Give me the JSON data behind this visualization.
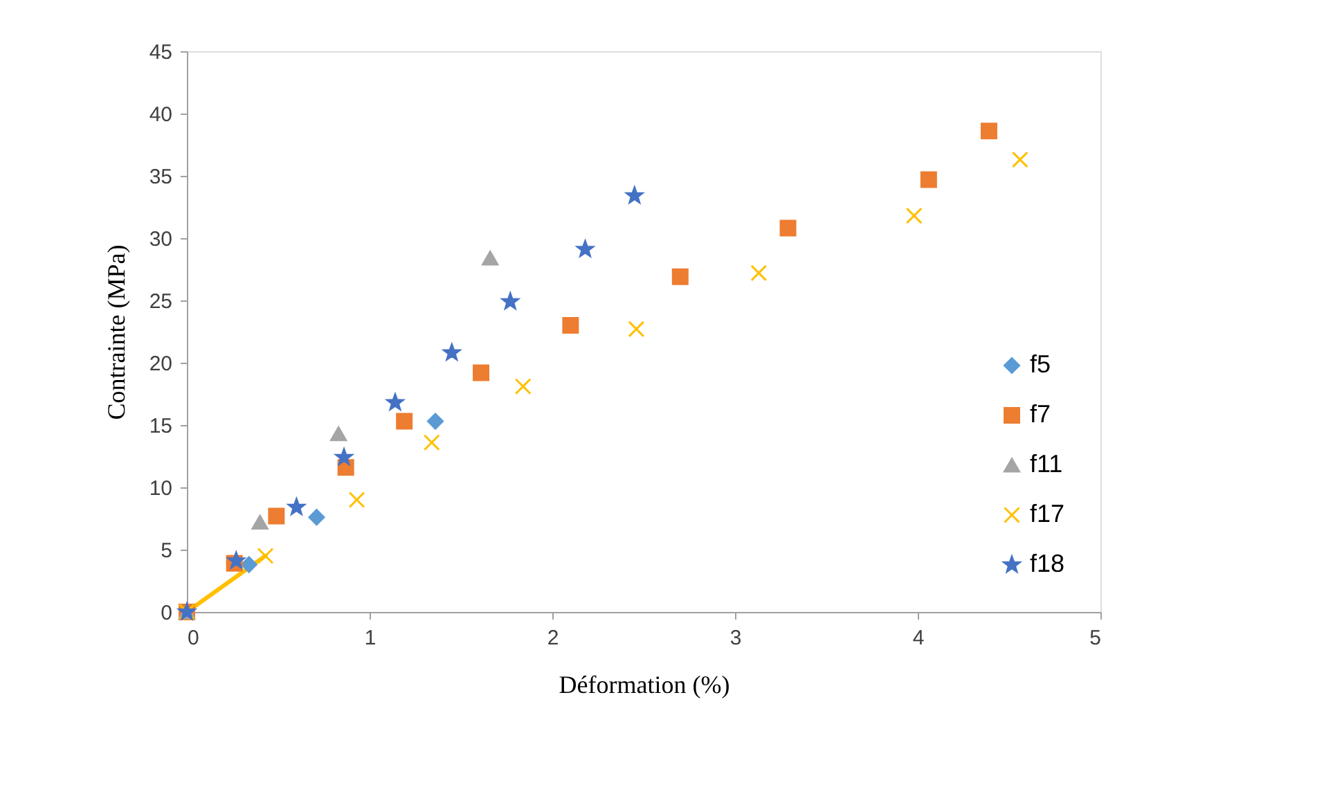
{
  "chart_data": {
    "type": "scatter",
    "xlabel": "Déformation (%)",
    "ylabel": "Contrainte (MPa)",
    "xlim": [
      0,
      5
    ],
    "xticks": [
      0,
      1,
      2,
      3,
      4,
      5
    ],
    "ylim": [
      0,
      45
    ],
    "yticks": [
      0,
      5,
      10,
      15,
      20,
      25,
      30,
      35,
      40,
      45
    ],
    "grid": false,
    "legend": "right",
    "series": [
      {
        "name": "f5",
        "color": "#5b9bd5",
        "marker": "diamond",
        "x": [
          0.34,
          0.71,
          1.36
        ],
        "values": [
          3.8,
          7.6,
          15.3
        ]
      },
      {
        "name": "f7",
        "color": "#ed7d31",
        "marker": "square",
        "x": [
          0,
          0.26,
          0.49,
          0.87,
          1.19,
          1.61,
          2.1,
          2.7,
          3.29,
          4.06,
          4.39
        ],
        "values": [
          0,
          3.9,
          7.7,
          11.6,
          15.3,
          19.2,
          23.0,
          26.9,
          30.8,
          34.7,
          38.6
        ]
      },
      {
        "name": "f11",
        "color": "#a5a5a5",
        "marker": "triangle",
        "x": [
          0,
          0.4,
          0.83,
          1.66
        ],
        "values": [
          0,
          7.2,
          14.3,
          28.4
        ]
      },
      {
        "name": "f17",
        "color": "#ffc000",
        "marker": "cross",
        "x": [
          0,
          0.43,
          0.93,
          1.34,
          1.84,
          2.46,
          3.13,
          3.98,
          4.56
        ],
        "values": [
          0,
          4.5,
          9.0,
          13.6,
          18.1,
          22.7,
          27.2,
          31.8,
          36.3
        ]
      },
      {
        "name": "f18",
        "color": "#4472c4",
        "marker": "star",
        "x": [
          0,
          0.27,
          0.6,
          0.86,
          1.14,
          1.45,
          1.77,
          2.18,
          2.45
        ],
        "values": [
          0,
          4.1,
          8.4,
          12.4,
          16.8,
          20.8,
          24.9,
          29.1,
          33.4
        ]
      },
      {
        "type": "line",
        "color": "#ffc000",
        "line_style": "solid",
        "x": [
          0,
          0.43
        ],
        "values": [
          0,
          4.5
        ]
      }
    ]
  }
}
